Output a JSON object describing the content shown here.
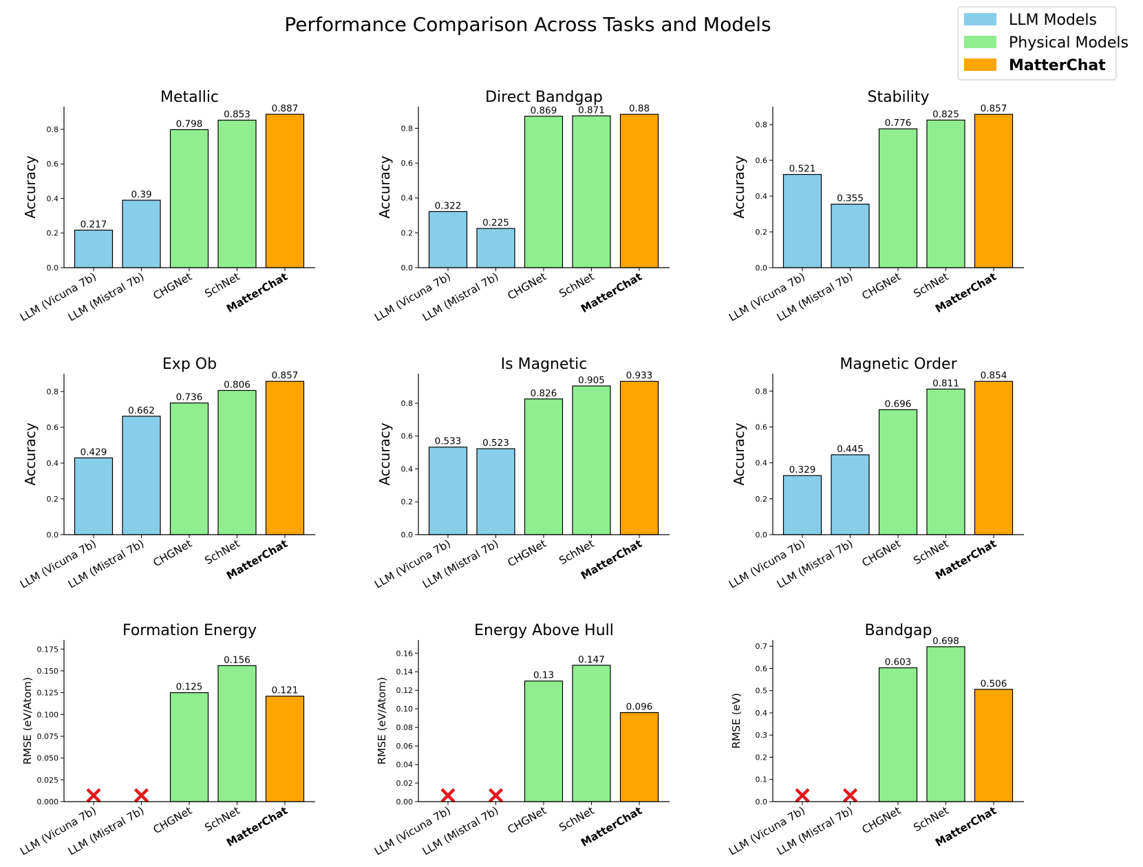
{
  "chart_data": {
    "title": "Performance Comparison Across Tasks and Models",
    "legend": {
      "placement": "top-right",
      "entries": [
        {
          "label": "LLM Models",
          "color": "#87ceeb",
          "bold": false
        },
        {
          "label": "Physical Models",
          "color": "#90ee90",
          "bold": false
        },
        {
          "label": "MatterChat",
          "color": "#ffa500",
          "bold": true
        }
      ]
    },
    "categories": [
      "LLM (Vicuna 7b)",
      "LLM (Mistral 7b)",
      "CHGNet",
      "SchNet",
      "MatterChat"
    ],
    "bar_colors": [
      "#87ceeb",
      "#87ceeb",
      "#90ee90",
      "#90ee90",
      "#ffa500"
    ],
    "missing_marker_color": "#e41a1c",
    "panels": [
      {
        "type": "bar",
        "title": "Metallic",
        "ylabel": "Accuracy",
        "values": [
          0.217,
          0.39,
          0.798,
          0.853,
          0.887
        ],
        "labels": [
          "0.217",
          "0.39",
          "0.798",
          "0.853",
          "0.887"
        ],
        "ylim": [
          0,
          0.931
        ],
        "yticks": [
          "0.0",
          "0.2",
          "0.4",
          "0.6",
          "0.8"
        ],
        "ytick_values": [
          0,
          0.2,
          0.4,
          0.6,
          0.8
        ],
        "missing": [
          false,
          false,
          false,
          false,
          false
        ]
      },
      {
        "type": "bar",
        "title": "Direct Bandgap",
        "ylabel": "Accuracy",
        "values": [
          0.322,
          0.225,
          0.869,
          0.871,
          0.88
        ],
        "labels": [
          "0.322",
          "0.225",
          "0.869",
          "0.871",
          "0.88"
        ],
        "ylim": [
          0,
          0.924
        ],
        "yticks": [
          "0.0",
          "0.2",
          "0.4",
          "0.6",
          "0.8"
        ],
        "ytick_values": [
          0,
          0.2,
          0.4,
          0.6,
          0.8
        ],
        "missing": [
          false,
          false,
          false,
          false,
          false
        ]
      },
      {
        "type": "bar",
        "title": "Stability",
        "ylabel": "Accuracy",
        "values": [
          0.521,
          0.355,
          0.776,
          0.825,
          0.857
        ],
        "labels": [
          "0.521",
          "0.355",
          "0.776",
          "0.825",
          "0.857"
        ],
        "ylim": [
          0,
          0.9
        ],
        "yticks": [
          "0.0",
          "0.2",
          "0.4",
          "0.6",
          "0.8"
        ],
        "ytick_values": [
          0,
          0.2,
          0.4,
          0.6,
          0.8
        ],
        "missing": [
          false,
          false,
          false,
          false,
          false
        ]
      },
      {
        "type": "bar",
        "title": "Exp Ob",
        "ylabel": "Accuracy",
        "values": [
          0.429,
          0.662,
          0.736,
          0.806,
          0.857
        ],
        "labels": [
          "0.429",
          "0.662",
          "0.736",
          "0.806",
          "0.857"
        ],
        "ylim": [
          0,
          0.9
        ],
        "yticks": [
          "0.0",
          "0.2",
          "0.4",
          "0.6",
          "0.8"
        ],
        "ytick_values": [
          0,
          0.2,
          0.4,
          0.6,
          0.8
        ],
        "missing": [
          false,
          false,
          false,
          false,
          false
        ]
      },
      {
        "type": "bar",
        "title": "Is Magnetic",
        "ylabel": "Accuracy",
        "values": [
          0.533,
          0.523,
          0.826,
          0.905,
          0.933
        ],
        "labels": [
          "0.533",
          "0.523",
          "0.826",
          "0.905",
          "0.933"
        ],
        "ylim": [
          0,
          0.98
        ],
        "yticks": [
          "0.0",
          "0.2",
          "0.4",
          "0.6",
          "0.8"
        ],
        "ytick_values": [
          0,
          0.2,
          0.4,
          0.6,
          0.8
        ],
        "missing": [
          false,
          false,
          false,
          false,
          false
        ]
      },
      {
        "type": "bar",
        "title": "Magnetic Order",
        "ylabel": "Accuracy",
        "values": [
          0.329,
          0.445,
          0.696,
          0.811,
          0.854
        ],
        "labels": [
          "0.329",
          "0.445",
          "0.696",
          "0.811",
          "0.854"
        ],
        "ylim": [
          0,
          0.897
        ],
        "yticks": [
          "0.0",
          "0.2",
          "0.4",
          "0.6",
          "0.8"
        ],
        "ytick_values": [
          0,
          0.2,
          0.4,
          0.6,
          0.8
        ],
        "missing": [
          false,
          false,
          false,
          false,
          false
        ]
      },
      {
        "type": "bar",
        "title": "Formation Energy",
        "ylabel": "RMSE (eV/Atom)",
        "values": [
          0,
          0,
          0.125,
          0.156,
          0.121
        ],
        "labels": [
          "",
          "",
          "0.125",
          "0.156",
          "0.121"
        ],
        "ylim": [
          0,
          0.1855
        ],
        "yticks": [
          "0.000",
          "0.025",
          "0.050",
          "0.075",
          "0.100",
          "0.125",
          "0.150",
          "0.175"
        ],
        "ytick_values": [
          0,
          0.025,
          0.05,
          0.075,
          0.1,
          0.125,
          0.15,
          0.175
        ],
        "missing": [
          true,
          true,
          false,
          false,
          false
        ]
      },
      {
        "type": "bar",
        "title": "Energy Above Hull",
        "ylabel": "RMSE (eV/Atom)",
        "values": [
          0,
          0,
          0.13,
          0.147,
          0.096
        ],
        "labels": [
          "",
          "",
          "0.13",
          "0.147",
          "0.096"
        ],
        "ylim": [
          0,
          0.1743
        ],
        "yticks": [
          "0.00",
          "0.02",
          "0.04",
          "0.06",
          "0.08",
          "0.10",
          "0.12",
          "0.14",
          "0.16"
        ],
        "ytick_values": [
          0,
          0.02,
          0.04,
          0.06,
          0.08,
          0.1,
          0.12,
          0.14,
          0.16
        ],
        "missing": [
          true,
          true,
          false,
          false,
          false
        ]
      },
      {
        "type": "bar",
        "title": "Bandgap",
        "ylabel": "RMSE (eV)",
        "values": [
          0,
          0,
          0.603,
          0.698,
          0.506
        ],
        "labels": [
          "",
          "",
          "0.603",
          "0.698",
          "0.506"
        ],
        "ylim": [
          0,
          0.7286
        ],
        "yticks": [
          "0.0",
          "0.1",
          "0.2",
          "0.3",
          "0.4",
          "0.5",
          "0.6",
          "0.7"
        ],
        "ytick_values": [
          0,
          0.1,
          0.2,
          0.3,
          0.4,
          0.5,
          0.6,
          0.7
        ],
        "missing": [
          true,
          true,
          false,
          false,
          false
        ]
      }
    ]
  }
}
